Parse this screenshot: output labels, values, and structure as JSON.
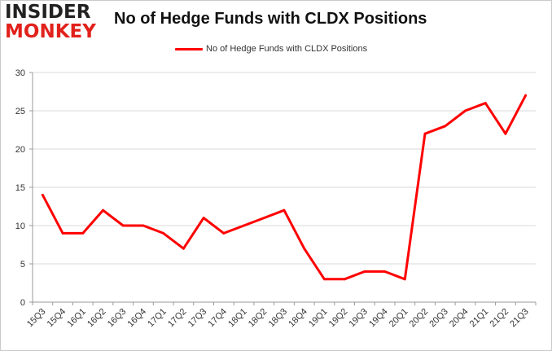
{
  "logo": {
    "line1": "INSIDER",
    "line2": "MONKEY"
  },
  "colors": {
    "series": "#ff0000",
    "grid": "#d9d9d9",
    "logo_red": "#e1211b"
  },
  "chart_data": {
    "type": "line",
    "title": "No of Hedge Funds with CLDX Positions",
    "legend": {
      "position": "top-center"
    },
    "grid": true,
    "xlabel": "",
    "ylabel": "",
    "ylim": [
      0,
      30
    ],
    "yticks": [
      0,
      5,
      10,
      15,
      20,
      25,
      30
    ],
    "categories": [
      "15Q3",
      "15Q4",
      "16Q1",
      "16Q2",
      "16Q3",
      "16Q4",
      "17Q1",
      "17Q2",
      "17Q3",
      "17Q4",
      "18Q1",
      "18Q2",
      "18Q3",
      "18Q4",
      "19Q1",
      "19Q2",
      "19Q3",
      "19Q4",
      "20Q1",
      "20Q2",
      "20Q3",
      "20Q4",
      "21Q1",
      "21Q2",
      "21Q3"
    ],
    "series": [
      {
        "name": "No of Hedge Funds with CLDX Positions",
        "values": [
          14,
          9,
          9,
          12,
          10,
          10,
          9,
          7,
          11,
          9,
          10,
          11,
          12,
          7,
          3,
          3,
          4,
          4,
          3,
          22,
          23,
          25,
          26,
          22,
          27
        ]
      }
    ]
  }
}
